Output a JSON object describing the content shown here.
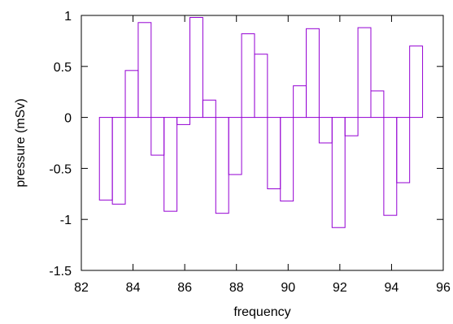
{
  "chart_data": {
    "type": "bar",
    "style": "histogram-steps-outline",
    "title": "",
    "xlabel": "frequency",
    "ylabel": "pressure (mSv)",
    "xlim": [
      82,
      96
    ],
    "ylim": [
      -1.5,
      1
    ],
    "xticks": [
      82,
      84,
      86,
      88,
      90,
      92,
      94,
      96
    ],
    "yticks": [
      -1.5,
      -1,
      -0.5,
      0,
      0.5,
      1
    ],
    "ytick_labels": [
      "-1.5",
      "-1",
      "-0.5",
      "0",
      "0.5",
      "1"
    ],
    "grid": false,
    "legend": "none",
    "bar_width": 0.5,
    "series": [
      {
        "color": "#9400d3",
        "x": [
          82.95,
          83.45,
          83.95,
          84.45,
          84.95,
          85.45,
          85.95,
          86.45,
          86.95,
          87.45,
          87.95,
          88.45,
          88.95,
          89.45,
          89.95,
          90.45,
          90.95,
          91.45,
          91.95,
          92.45,
          92.95,
          93.45,
          93.95,
          94.45,
          94.95
        ],
        "values": [
          -0.81,
          -0.85,
          0.46,
          0.93,
          -0.37,
          -0.92,
          -0.07,
          0.98,
          0.17,
          -0.94,
          -0.56,
          0.82,
          0.62,
          -0.7,
          -0.82,
          0.31,
          0.87,
          -0.25,
          -1.08,
          -0.18,
          0.88,
          0.26,
          -0.96,
          -0.64,
          0.7
        ]
      }
    ]
  }
}
